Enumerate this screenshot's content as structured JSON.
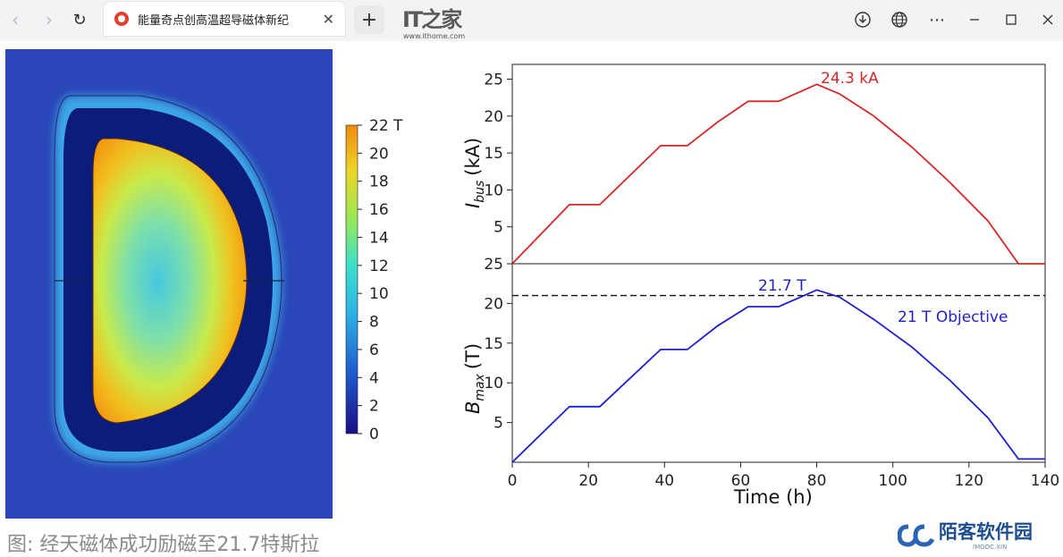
{
  "browser": {
    "tab_title": "能量奇点创高温超导磁体新纪",
    "tab_close": "✕",
    "new_tab": "+",
    "logo_mark": "IT之家",
    "logo_url": "www.ithome.com"
  },
  "figure": {
    "colorbar_labels": [
      "22 T",
      "20",
      "18",
      "16",
      "14",
      "12",
      "10",
      "8",
      "6",
      "4",
      "2",
      "0"
    ],
    "plot_top": {
      "ylabel_main": "I",
      "ylabel_sub": "bus",
      "ylabel_unit": "(kA)",
      "yticks": [
        "25",
        "20",
        "15",
        "10",
        "5"
      ],
      "annotation": "24.3 kA",
      "color": "#d62728"
    },
    "plot_bottom": {
      "ylabel_main": "B",
      "ylabel_sub": "max",
      "ylabel_unit": "(T)",
      "yticks": [
        "25",
        "20",
        "15",
        "10",
        "5"
      ],
      "annotation": "21.7 T",
      "objective_label": "21 T Objective",
      "color": "#1f1fcc"
    },
    "xticks": [
      "0",
      "20",
      "40",
      "60",
      "80",
      "100",
      "120",
      "140"
    ],
    "xlabel": "Time (h)"
  },
  "caption": "图: 经天磁体成功励磁至21.7特斯拉",
  "watermark": {
    "text": "陌客软件园",
    "sub": "IMOOC.XIN"
  },
  "chart_data": [
    {
      "type": "line",
      "xlabel": "Time (h)",
      "ylabel": "Ibus (kA)",
      "xlim": [
        0,
        140
      ],
      "ylim": [
        0,
        27
      ],
      "series": [
        {
          "x": [
            0,
            15,
            23,
            39,
            46,
            54,
            62,
            70,
            80,
            86,
            95,
            105,
            115,
            125,
            133,
            140
          ],
          "y": [
            0,
            8,
            8,
            16,
            16,
            19.2,
            22,
            22,
            24.3,
            23,
            20,
            15.8,
            11,
            5.8,
            0,
            0
          ]
        }
      ],
      "annotations": [
        "24.3 kA"
      ]
    },
    {
      "type": "line",
      "xlabel": "Time (h)",
      "ylabel": "Bmax (T)",
      "xlim": [
        0,
        140
      ],
      "ylim": [
        0,
        25
      ],
      "objective": 21,
      "series": [
        {
          "x": [
            0,
            15,
            23,
            39,
            46,
            54,
            62,
            70,
            80,
            86,
            95,
            105,
            115,
            125,
            133,
            140
          ],
          "y": [
            0,
            7,
            7,
            14.2,
            14.2,
            17.2,
            19.6,
            19.6,
            21.7,
            20.8,
            18,
            14.5,
            10.3,
            5.6,
            0.4,
            0.4
          ]
        }
      ],
      "annotations": [
        "21.7 T",
        "21 T Objective"
      ]
    }
  ]
}
